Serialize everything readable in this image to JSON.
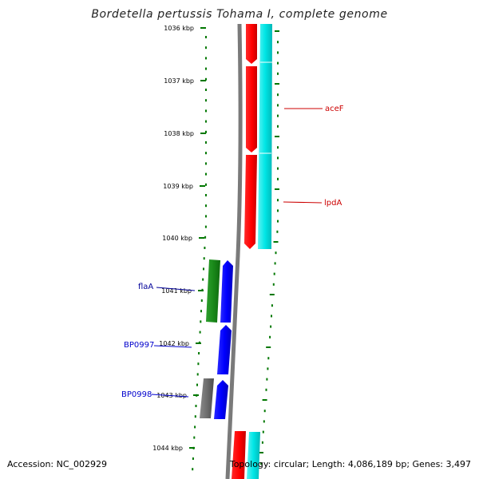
{
  "title": "Bordetella pertussis Tohama I, complete genome",
  "accession_text": "Accession: NC_002929",
  "summary_text": "Topology: circular; Length: 4,086,189 bp; Genes: 3,497",
  "ticks": [
    "1036 kbp",
    "1037 kbp",
    "1038 kbp",
    "1039 kbp",
    "1040 kbp",
    "1041 kbp",
    "1042 kbp",
    "1043 kbp",
    "1044 kbp"
  ],
  "genes_right": [
    {
      "name": "aceF",
      "color": "#cc0000"
    },
    {
      "name": "lpdA",
      "color": "#cc0000"
    }
  ],
  "genes_left": [
    {
      "name": "flaA",
      "color": "#000099"
    },
    {
      "name": "BP0997",
      "color": "#0000cc"
    },
    {
      "name": "BP0998",
      "color": "#0000cc"
    }
  ],
  "colors": {
    "backbone": "#808080",
    "tick": "#007700",
    "cds_red": "#ff0000",
    "rna_cyan": "#00e5e5",
    "cds_blue": "#0000ff",
    "gene_green": "#1a8a1a",
    "pseudo_gray": "#707070"
  }
}
